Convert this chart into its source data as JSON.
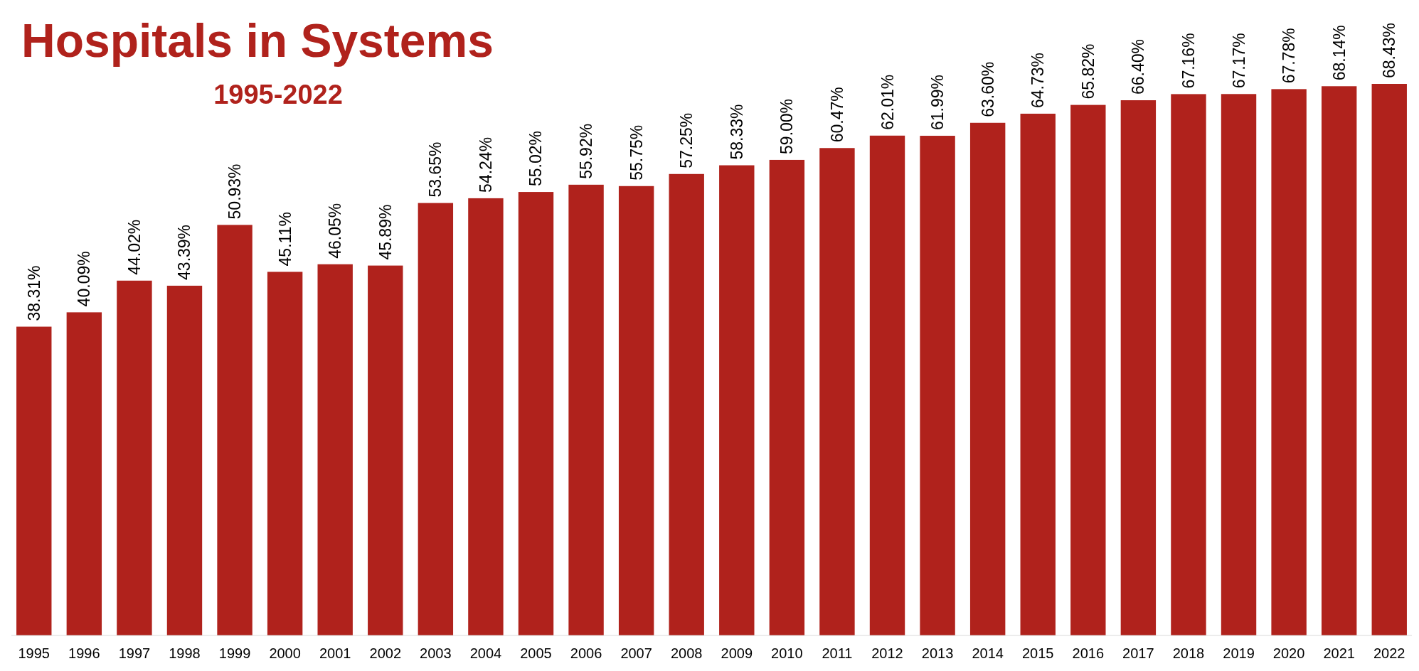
{
  "chart_data": {
    "type": "bar",
    "title": "Hospitals in Systems",
    "subtitle": "1995-2022",
    "categories": [
      "1995",
      "1996",
      "1997",
      "1998",
      "1999",
      "2000",
      "2001",
      "2002",
      "2003",
      "2004",
      "2005",
      "2006",
      "2007",
      "2008",
      "2009",
      "2010",
      "2011",
      "2012",
      "2013",
      "2014",
      "2015",
      "2016",
      "2017",
      "2018",
      "2019",
      "2020",
      "2021",
      "2022"
    ],
    "values": [
      38.31,
      40.09,
      44.02,
      43.39,
      50.93,
      45.11,
      46.05,
      45.89,
      53.65,
      54.24,
      55.02,
      55.92,
      55.75,
      57.25,
      58.33,
      59.0,
      60.47,
      62.01,
      61.99,
      63.6,
      64.73,
      65.82,
      66.4,
      67.16,
      67.17,
      67.78,
      68.14,
      68.43
    ],
    "value_labels": [
      "38.31%",
      "40.09%",
      "44.02%",
      "43.39%",
      "50.93%",
      "45.11%",
      "46.05%",
      "45.89%",
      "53.65%",
      "54.24%",
      "55.02%",
      "55.92%",
      "55.75%",
      "57.25%",
      "58.33%",
      "59.00%",
      "60.47%",
      "62.01%",
      "61.99%",
      "63.60%",
      "64.73%",
      "65.82%",
      "66.40%",
      "67.16%",
      "67.17%",
      "67.78%",
      "68.14%",
      "68.43%"
    ],
    "color": "#b0221c"
  }
}
